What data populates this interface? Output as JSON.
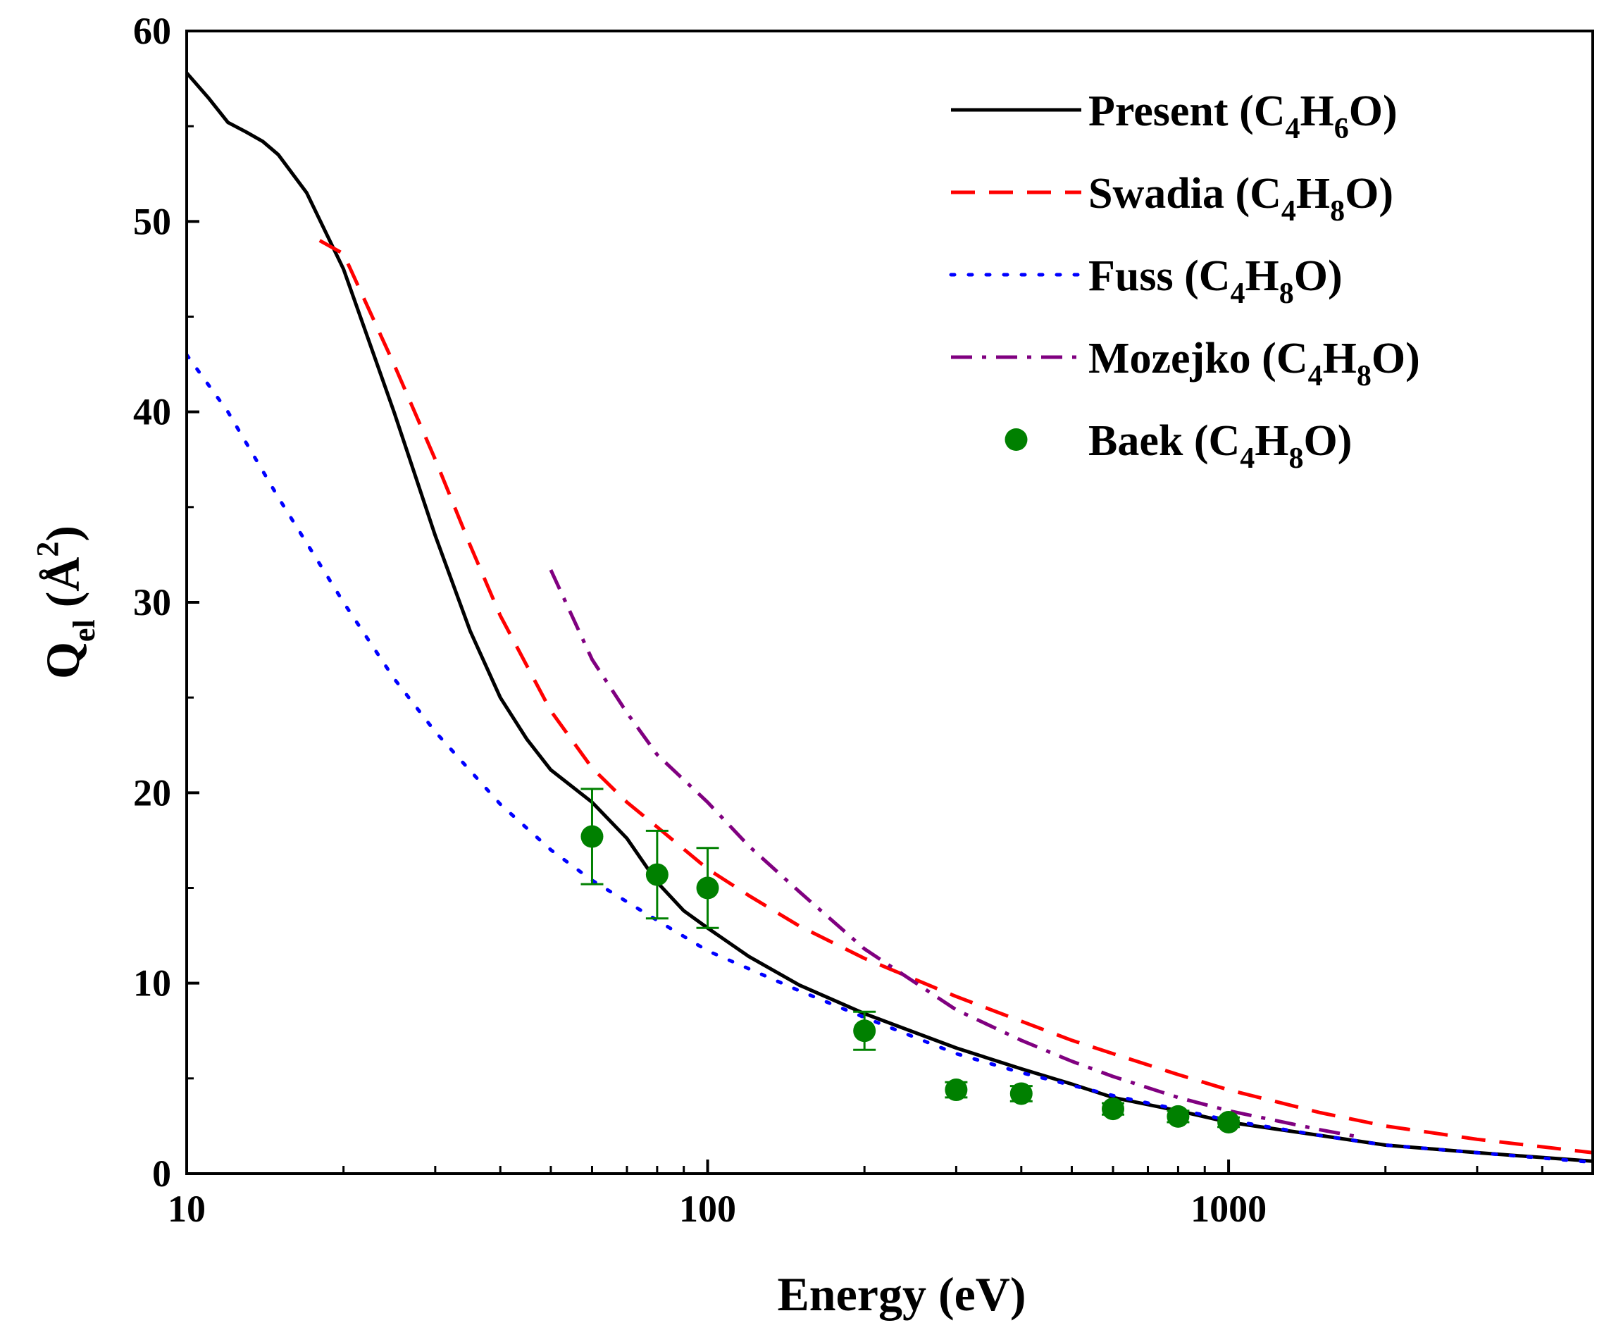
{
  "chart_data": {
    "type": "line",
    "xscale": "log",
    "xlabel": "Energy (eV)",
    "ylabel": {
      "main": "Q",
      "sub": "el",
      "unit_open": " (Å",
      "unit_sup": "2",
      "unit_close": ")"
    },
    "xlim": [
      10,
      5000
    ],
    "ylim": [
      0,
      60
    ],
    "xticks": [
      10,
      100,
      1000
    ],
    "xtick_labels": [
      "10",
      "100",
      "1000"
    ],
    "yticks": [
      0,
      10,
      20,
      30,
      40,
      50,
      60
    ],
    "ytick_labels": [
      "0",
      "10",
      "20",
      "30",
      "40",
      "50",
      "60"
    ],
    "series": [
      {
        "key": "present",
        "name": "Present",
        "formula": [
          {
            "t": "C"
          },
          {
            "t": "4",
            "sub": true
          },
          {
            "t": "H"
          },
          {
            "t": "6",
            "sub": true
          },
          {
            "t": "O"
          }
        ],
        "style": "solid",
        "color": "#000000",
        "x": [
          10,
          11,
          12,
          13,
          14,
          15,
          17,
          20,
          25,
          30,
          35,
          40,
          45,
          50,
          60,
          70,
          80,
          90,
          100,
          120,
          150,
          200,
          300,
          400,
          500,
          600,
          800,
          1000,
          1500,
          2000,
          3000,
          5000
        ],
        "y": [
          57.8,
          56.5,
          55.2,
          54.7,
          54.2,
          53.5,
          51.5,
          47.5,
          40.0,
          33.5,
          28.5,
          25.0,
          22.8,
          21.2,
          19.5,
          17.6,
          15.3,
          13.8,
          12.9,
          11.4,
          9.9,
          8.4,
          6.6,
          5.5,
          4.7,
          4.0,
          3.3,
          2.7,
          2.0,
          1.5,
          1.1,
          0.65
        ]
      },
      {
        "key": "swadia",
        "name": "Swadia",
        "formula": [
          {
            "t": "C"
          },
          {
            "t": "4",
            "sub": true
          },
          {
            "t": "H"
          },
          {
            "t": "8",
            "sub": true
          },
          {
            "t": "O"
          }
        ],
        "style": "dashed",
        "color": "#ff0000",
        "x": [
          18,
          20,
          25,
          30,
          35,
          40,
          50,
          60,
          70,
          80,
          100,
          120,
          150,
          200,
          250,
          300,
          400,
          500,
          600,
          800,
          1000,
          1500,
          2000,
          3000,
          5000
        ],
        "y": [
          49.0,
          48.3,
          42.5,
          37.5,
          33.0,
          29.3,
          24.3,
          21.3,
          19.5,
          18.2,
          16.0,
          14.6,
          13.0,
          11.3,
          10.2,
          9.3,
          8.0,
          7.0,
          6.3,
          5.2,
          4.4,
          3.2,
          2.5,
          1.8,
          1.1
        ]
      },
      {
        "key": "fuss",
        "name": "Fuss",
        "formula": [
          {
            "t": "C"
          },
          {
            "t": "4",
            "sub": true
          },
          {
            "t": "H"
          },
          {
            "t": "8",
            "sub": true
          },
          {
            "t": "O"
          }
        ],
        "style": "dotted",
        "color": "#0000ff",
        "x": [
          10,
          12,
          15,
          20,
          25,
          30,
          40,
          50,
          60,
          80,
          100,
          150,
          200,
          300,
          400,
          600,
          1000,
          1500,
          2000,
          3000,
          5000
        ],
        "y": [
          43.0,
          40.0,
          35.5,
          30.0,
          26.0,
          23.2,
          19.4,
          17.0,
          15.4,
          13.3,
          11.7,
          9.6,
          8.2,
          6.3,
          5.3,
          4.1,
          2.8,
          2.0,
          1.5,
          1.1,
          0.6
        ]
      },
      {
        "key": "mozejko",
        "name": "Mozejko",
        "formula": [
          {
            "t": "C"
          },
          {
            "t": "4",
            "sub": true
          },
          {
            "t": "H"
          },
          {
            "t": "8",
            "sub": true
          },
          {
            "t": "O"
          }
        ],
        "style": "dashdot",
        "color": "#800080",
        "x": [
          50,
          60,
          70,
          80,
          100,
          120,
          150,
          200,
          300,
          400,
          500,
          600,
          800,
          1000,
          1500,
          1800
        ],
        "y": [
          31.7,
          27.0,
          24.2,
          22.0,
          19.5,
          17.2,
          14.8,
          11.8,
          8.6,
          7.0,
          5.9,
          5.1,
          4.0,
          3.3,
          2.3,
          1.9
        ]
      },
      {
        "key": "baek",
        "name": "Baek",
        "formula": [
          {
            "t": "C"
          },
          {
            "t": "4",
            "sub": true
          },
          {
            "t": "H"
          },
          {
            "t": "8",
            "sub": true
          },
          {
            "t": "O"
          }
        ],
        "style": "points",
        "color": "#008000",
        "x": [
          60,
          80,
          100,
          200,
          300,
          400,
          600,
          800,
          1000
        ],
        "y": [
          17.7,
          15.7,
          15.0,
          7.5,
          4.4,
          4.2,
          3.4,
          3.0,
          2.7
        ],
        "yerr": [
          2.5,
          2.3,
          2.1,
          1.0,
          0.4,
          0.4,
          0.3,
          0.3,
          0.25
        ]
      }
    ]
  }
}
